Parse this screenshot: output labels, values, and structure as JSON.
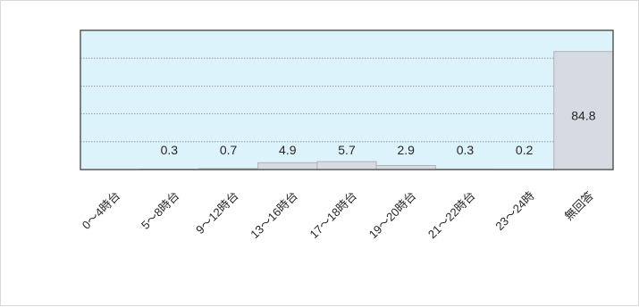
{
  "chart_data": {
    "type": "bar",
    "categories": [
      "0～4時台",
      "5～8時台",
      "9～12時台",
      "13～16時台",
      "17～18時台",
      "19～20時台",
      "21～22時台",
      "23～24時",
      "無回答"
    ],
    "values": [
      0,
      0.3,
      0.7,
      4.9,
      5.7,
      2.9,
      0.3,
      0.2,
      84.8
    ],
    "data_labels": [
      "",
      "0.3",
      "0.7",
      "4.9",
      "5.7",
      "2.9",
      "0.3",
      "0.2",
      "84.8"
    ],
    "title": "",
    "xlabel": "",
    "ylabel": "",
    "ylim": [
      0,
      100
    ],
    "grid": true,
    "legend": "none",
    "colors": {
      "plot_background": "#ddf3fc",
      "bar_fill": "#d6dae3",
      "bar_stroke": "#b3b3b3",
      "gridline": "#8c8c8c",
      "plot_border": "#595959"
    }
  }
}
